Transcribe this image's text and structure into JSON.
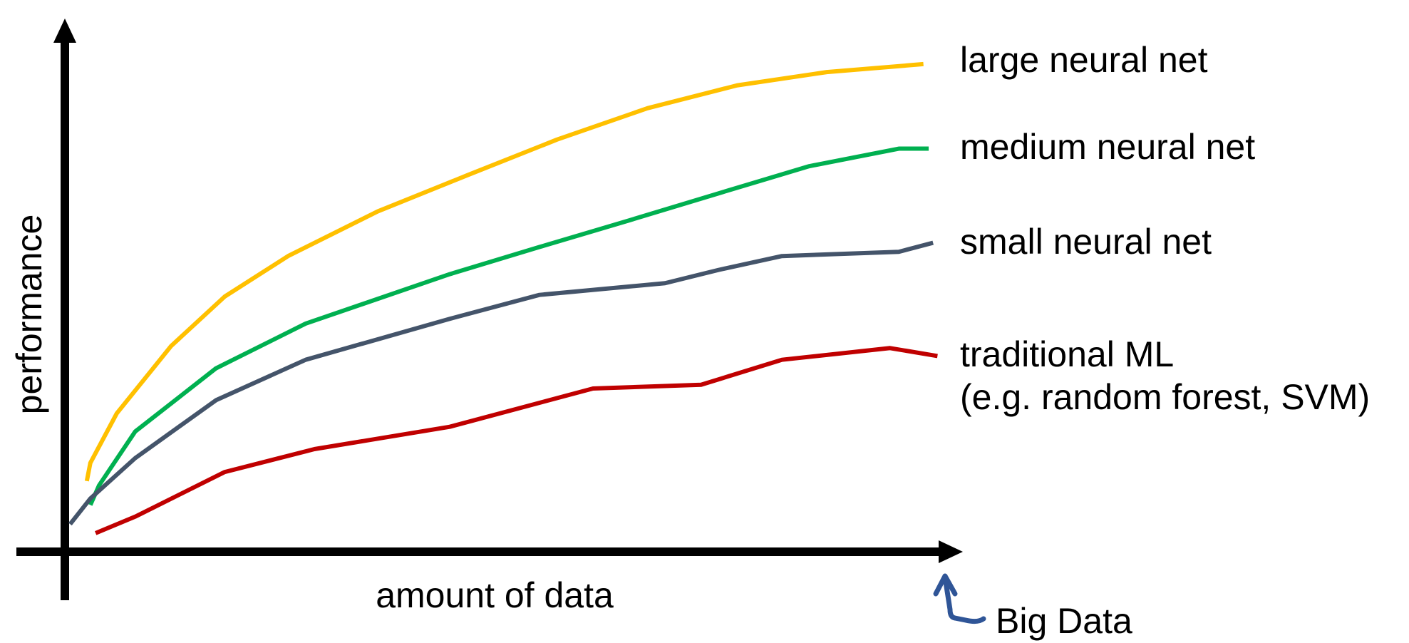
{
  "chart_data": {
    "type": "line",
    "title": "",
    "xlabel": "amount of data",
    "ylabel": "performance",
    "xlim": [
      0,
      100
    ],
    "ylim": [
      0,
      100
    ],
    "grid": false,
    "legend": "right, inline labels at line ends",
    "annotation": {
      "text": "Big Data",
      "color": "#2F5597",
      "points_to": "end of x axis"
    },
    "series": [
      {
        "name": "large neural net",
        "color": "#FFC000",
        "x": [
          2.5,
          2.9,
          5.9,
          12.1,
          18.2,
          25.4,
          35.6,
          45.8,
          56.0,
          66.3,
          76.5,
          86.7,
          97.7
        ],
        "y": [
          13.3,
          16.7,
          26.0,
          38.7,
          48.0,
          55.6,
          64.0,
          70.8,
          77.5,
          83.4,
          87.7,
          90.2,
          91.7
        ]
      },
      {
        "name": "medium neural net",
        "color": "#00B050",
        "x": [
          2.9,
          3.9,
          8.0,
          17.2,
          27.4,
          43.8,
          54.0,
          64.2,
          74.4,
          84.7,
          94.9,
          98.3
        ],
        "y": [
          8.8,
          12.5,
          22.6,
          34.5,
          42.9,
          52.2,
          57.3,
          62.3,
          67.4,
          72.5,
          75.8,
          75.8
        ]
      },
      {
        "name": "small neural net",
        "color": "#44546A",
        "x": [
          0.6,
          2.9,
          8.0,
          17.2,
          27.4,
          43.8,
          54.0,
          68.3,
          74.4,
          81.6,
          94.9,
          98.8
        ],
        "y": [
          5.2,
          10.0,
          17.6,
          28.5,
          36.1,
          43.8,
          48.3,
          50.5,
          53.0,
          55.6,
          56.4,
          58.1
        ]
      },
      {
        "name": "traditional ML",
        "name_line2": "(e.g. random forest, SVM)",
        "color": "#C00000",
        "x": [
          3.5,
          8.0,
          18.2,
          28.4,
          43.8,
          60.1,
          72.4,
          81.6,
          93.9,
          99.3
        ],
        "y": [
          3.5,
          6.6,
          15.0,
          19.3,
          23.5,
          30.7,
          31.4,
          36.1,
          38.3,
          36.8
        ]
      }
    ]
  }
}
